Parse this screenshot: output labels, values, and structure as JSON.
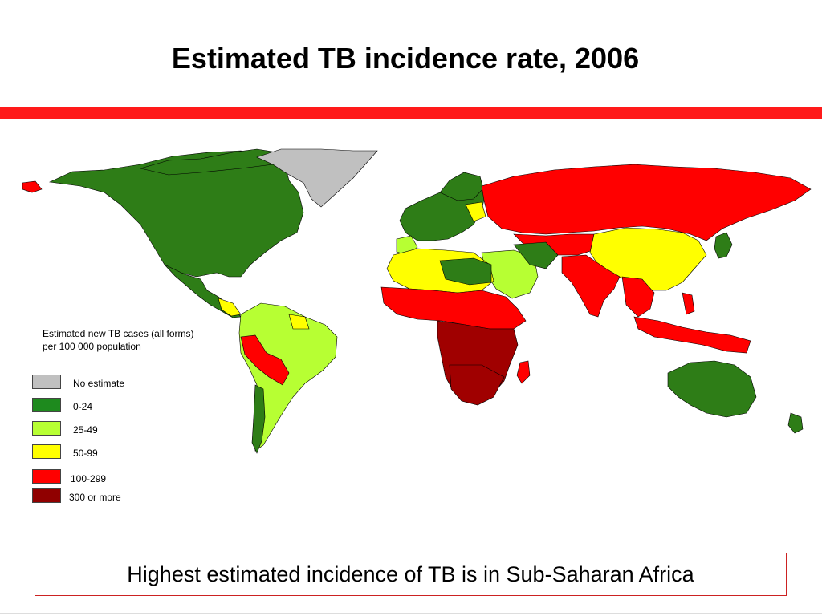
{
  "slide": {
    "title": "Estimated TB incidence rate, 2006",
    "caption": "Highest estimated incidence of TB is in Sub-Saharan Africa"
  },
  "colors": {
    "rule": "#ff1a1a",
    "no_estimate": "#c0c0c0",
    "band_0_24": "#2e7d17",
    "band_25_49": "#b7ff33",
    "band_50_99": "#ffff00",
    "band_100_299": "#ff0000",
    "band_300_plus": "#a00000",
    "ocean": "#ffffff",
    "border": "#000000"
  },
  "legend": {
    "title": "Estimated new TB cases (all forms) per 100 000 population",
    "items": [
      {
        "label": "No estimate",
        "color": "#c0c0c0"
      },
      {
        "label": "0-24",
        "color": "#1e8a1e"
      },
      {
        "label": "25-49",
        "color": "#b7ff33"
      },
      {
        "label": "50-99",
        "color": "#ffff00"
      },
      {
        "label": "100-299",
        "color": "#ff0000"
      },
      {
        "label": "300 or more",
        "color": "#900000"
      }
    ]
  },
  "map": {
    "regions": [
      {
        "name": "north-america",
        "band": "0-24"
      },
      {
        "name": "greenland",
        "band": "No estimate"
      },
      {
        "name": "mexico-central-america",
        "band": "0-24"
      },
      {
        "name": "south-america",
        "band": "25-49"
      },
      {
        "name": "peru-bolivia",
        "band": "100-299"
      },
      {
        "name": "europe",
        "band": "0-24"
      },
      {
        "name": "russia",
        "band": "100-299"
      },
      {
        "name": "china",
        "band": "50-99"
      },
      {
        "name": "india",
        "band": "100-299"
      },
      {
        "name": "southeast-asia",
        "band": "100-299"
      },
      {
        "name": "north-africa",
        "band": "50-99"
      },
      {
        "name": "sub-saharan-africa",
        "band": "300 or more"
      },
      {
        "name": "middle-east",
        "band": "25-49"
      },
      {
        "name": "australia",
        "band": "0-24"
      },
      {
        "name": "japan",
        "band": "0-24"
      }
    ]
  }
}
